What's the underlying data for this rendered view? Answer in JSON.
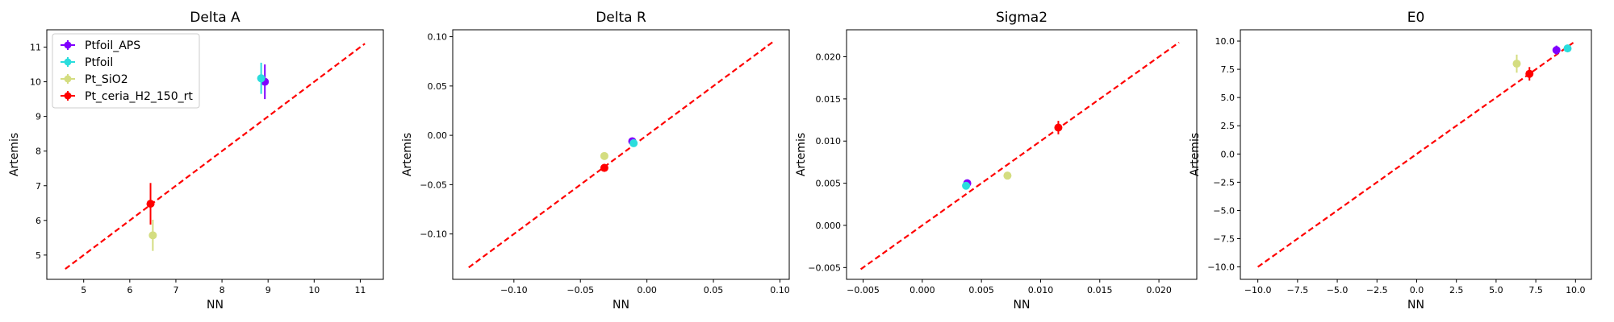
{
  "colors": {
    "Ptfoil_APS": "#8000ff",
    "Ptfoil": "#2adddd",
    "Pt_SiO2": "#d4dd80",
    "Pt_ceria_H2_150_rt": "#ff0000",
    "reference_line": "#ff0000"
  },
  "chart_data": [
    {
      "type": "scatter",
      "title": "Delta A",
      "xlabel": "NN",
      "ylabel": "Artemis",
      "xlim": [
        4.2,
        11.5
      ],
      "ylim": [
        4.3,
        11.5
      ],
      "xticks": [
        5,
        6,
        7,
        8,
        9,
        10,
        11
      ],
      "yticks": [
        5,
        6,
        7,
        8,
        9,
        10,
        11
      ],
      "ref_line": [
        4.6,
        11.1
      ],
      "legend": "upper-left",
      "series": [
        {
          "name": "Ptfoil_APS",
          "x": 8.93,
          "y": 10.0,
          "yerr": 0.5
        },
        {
          "name": "Ptfoil",
          "x": 8.85,
          "y": 10.1,
          "yerr": 0.45
        },
        {
          "name": "Pt_SiO2",
          "x": 6.5,
          "y": 5.57,
          "yerr": 0.45
        },
        {
          "name": "Pt_ceria_H2_150_rt",
          "x": 6.45,
          "y": 6.48,
          "yerr": 0.6
        }
      ]
    },
    {
      "type": "scatter",
      "title": "Delta R",
      "xlabel": "NN",
      "ylabel": "Artemis",
      "xlim": [
        -0.146,
        0.107
      ],
      "ylim": [
        -0.146,
        0.107
      ],
      "xticks": [
        -0.1,
        -0.05,
        0.0,
        0.05,
        0.1
      ],
      "xtick_labels": [
        "−0.10",
        "−0.05",
        "0.00",
        "0.05",
        "0.10"
      ],
      "yticks": [
        -0.1,
        -0.05,
        0.0,
        0.05,
        0.1
      ],
      "ytick_labels": [
        "−0.10",
        "−0.05",
        "0.00",
        "0.05",
        "0.10"
      ],
      "ref_line": [
        -0.134,
        0.095
      ],
      "series": [
        {
          "name": "Ptfoil_APS",
          "x": -0.011,
          "y": -0.006,
          "yerr": 0.002
        },
        {
          "name": "Ptfoil",
          "x": -0.01,
          "y": -0.008,
          "yerr": 0.002
        },
        {
          "name": "Pt_SiO2",
          "x": -0.032,
          "y": -0.021,
          "yerr": 0.003
        },
        {
          "name": "Pt_ceria_H2_150_rt",
          "x": -0.032,
          "y": -0.033,
          "yerr": 0.004
        }
      ]
    },
    {
      "type": "scatter",
      "title": "Sigma2",
      "xlabel": "NN",
      "ylabel": "Artemis",
      "xlim": [
        -0.0064,
        0.0232
      ],
      "ylim": [
        -0.0064,
        0.0232
      ],
      "xticks": [
        -0.005,
        0.0,
        0.005,
        0.01,
        0.015,
        0.02
      ],
      "xtick_labels": [
        "−0.005",
        "0.000",
        "0.005",
        "0.010",
        "0.015",
        "0.020"
      ],
      "yticks": [
        -0.005,
        0.0,
        0.005,
        0.01,
        0.015,
        0.02
      ],
      "ytick_labels": [
        "−0.005",
        "0.000",
        "0.005",
        "0.010",
        "0.015",
        "0.020"
      ],
      "ref_line": [
        -0.0052,
        0.0217
      ],
      "series": [
        {
          "name": "Ptfoil_APS",
          "x": 0.0038,
          "y": 0.005,
          "yerr": 0.0003
        },
        {
          "name": "Ptfoil",
          "x": 0.0037,
          "y": 0.0047,
          "yerr": 0.0003
        },
        {
          "name": "Pt_SiO2",
          "x": 0.0072,
          "y": 0.0059,
          "yerr": 0.0004
        },
        {
          "name": "Pt_ceria_H2_150_rt",
          "x": 0.0115,
          "y": 0.0116,
          "yerr": 0.0008
        }
      ]
    },
    {
      "type": "scatter",
      "title": "E0",
      "xlabel": "NN",
      "ylabel": "Artemis",
      "xlim": [
        -11.1,
        11.0
      ],
      "ylim": [
        -11.1,
        11.0
      ],
      "xticks": [
        -10,
        -7.5,
        -5,
        -2.5,
        0,
        2.5,
        5,
        7.5,
        10
      ],
      "xtick_labels": [
        "−10.0",
        "−7.5",
        "−5.0",
        "−2.5",
        "0.0",
        "2.5",
        "5.0",
        "7.5",
        "10.0"
      ],
      "yticks": [
        -10,
        -7.5,
        -5,
        -2.5,
        0,
        2.5,
        5,
        7.5,
        10
      ],
      "ytick_labels": [
        "−10.0",
        "−7.5",
        "−5.0",
        "−2.5",
        "0.0",
        "2.5",
        "5.0",
        "7.5",
        "10.0"
      ],
      "ref_line": [
        -10,
        10
      ],
      "series": [
        {
          "name": "Ptfoil_APS",
          "x": 8.8,
          "y": 9.2,
          "yerr": 0.4
        },
        {
          "name": "Ptfoil",
          "x": 9.5,
          "y": 9.35,
          "yerr": 0.3
        },
        {
          "name": "Pt_SiO2",
          "x": 6.3,
          "y": 8.0,
          "yerr": 0.8
        },
        {
          "name": "Pt_ceria_H2_150_rt",
          "x": 7.1,
          "y": 7.1,
          "yerr": 0.6
        }
      ]
    }
  ]
}
